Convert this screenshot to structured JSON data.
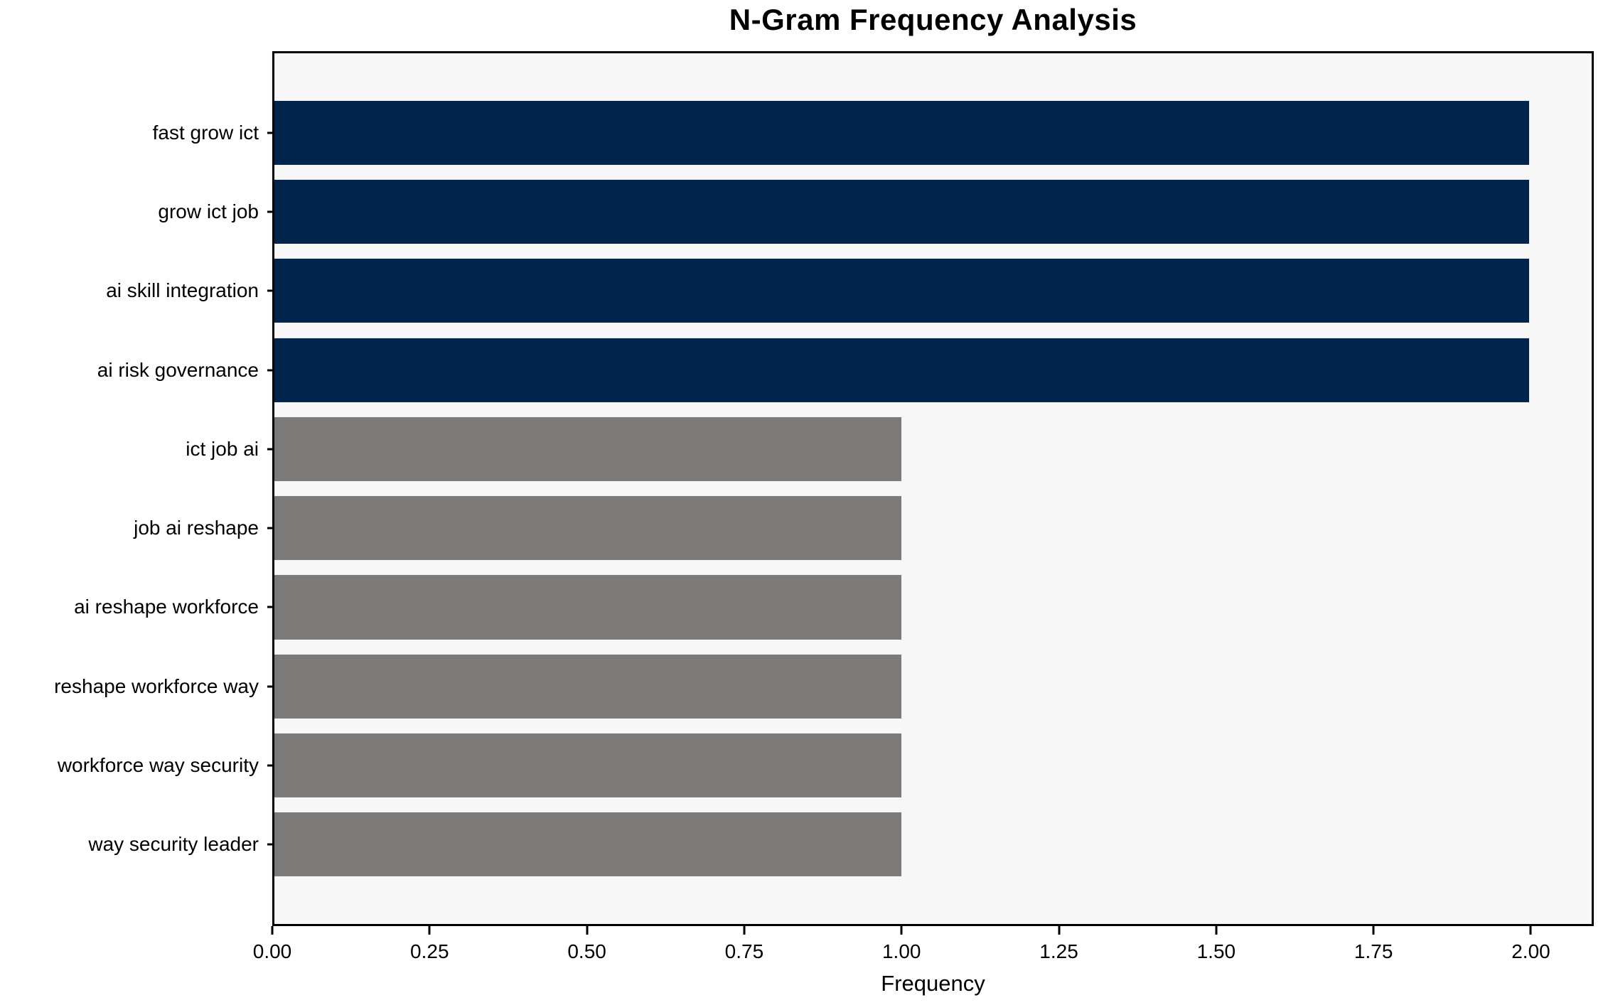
{
  "chart_data": {
    "type": "bar",
    "orientation": "horizontal",
    "title": "N-Gram Frequency Analysis",
    "xlabel": "Frequency",
    "ylabel": "",
    "categories": [
      "fast grow ict",
      "grow ict job",
      "ai skill integration",
      "ai risk governance",
      "ict job ai",
      "job ai reshape",
      "ai reshape workforce",
      "reshape workforce way",
      "workforce way security",
      "way security leader"
    ],
    "values": [
      2,
      2,
      2,
      2,
      1,
      1,
      1,
      1,
      1,
      1
    ],
    "bar_colors": [
      "#00244c",
      "#00244c",
      "#00244c",
      "#00244c",
      "#7b7a78",
      "#7b7a78",
      "#7b7a78",
      "#7b7a78",
      "#7b7a78",
      "#7b7a78"
    ],
    "xlim": [
      0,
      2.1
    ],
    "xticks": [
      0,
      0.25,
      0.5,
      0.75,
      1.0,
      1.25,
      1.5,
      1.75,
      2.0
    ],
    "xtick_labels": [
      "0.00",
      "0.25",
      "0.50",
      "0.75",
      "1.00",
      "1.25",
      "1.50",
      "1.75",
      "2.00"
    ],
    "grid": false,
    "legend": null,
    "colors": {
      "high_frequency_bar": "#00244c",
      "low_frequency_bar": "#7b7a78",
      "plot_background": "#f7f7f7",
      "frame": "#000000"
    }
  }
}
